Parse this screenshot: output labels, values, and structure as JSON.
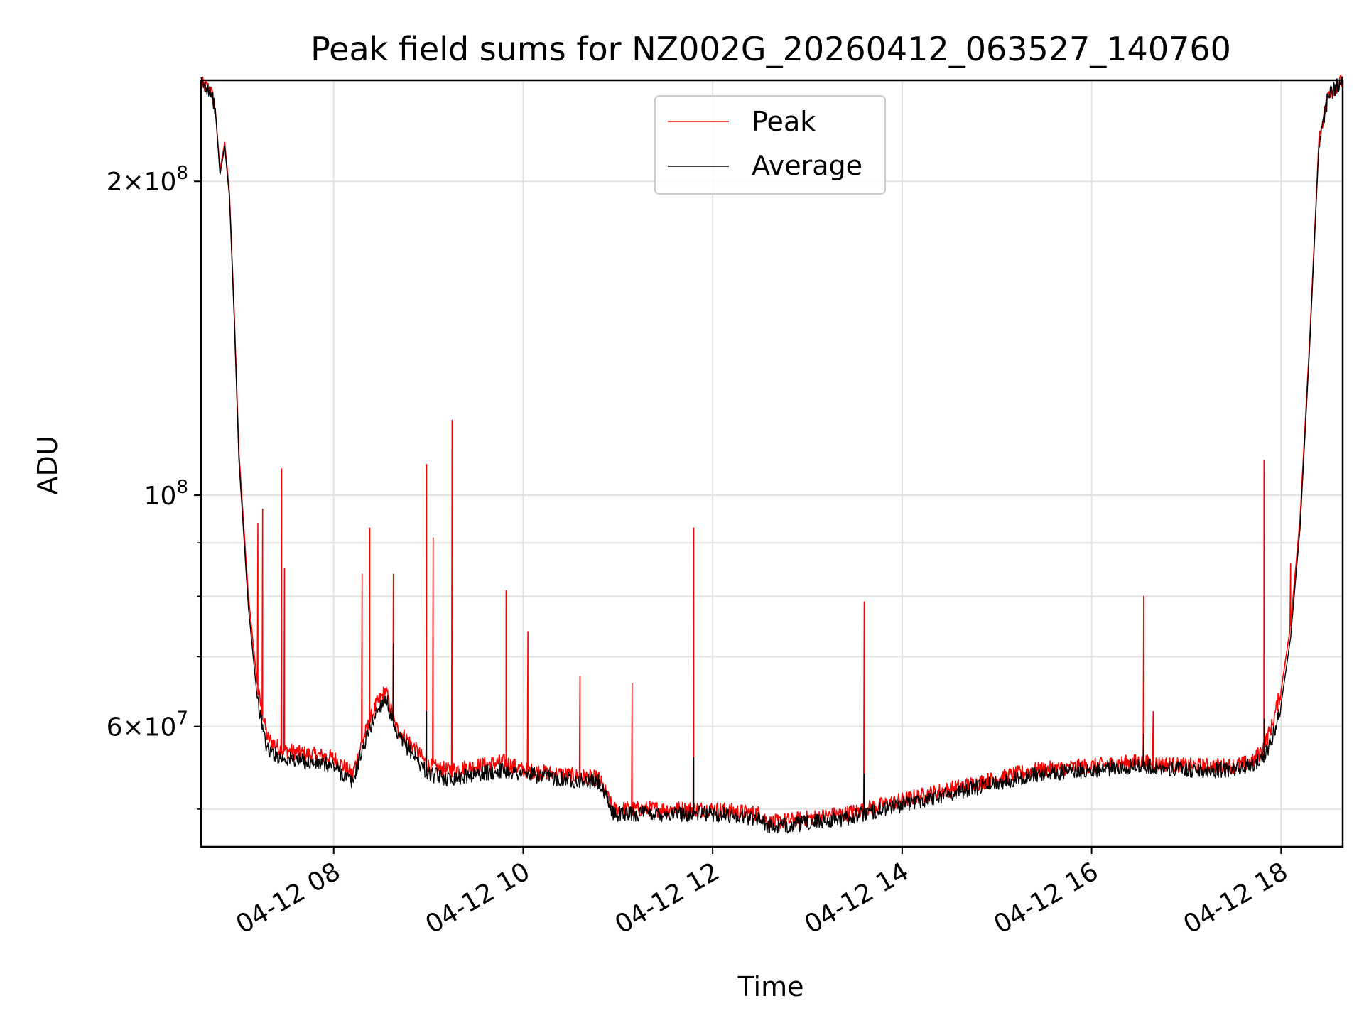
{
  "chart_data": {
    "type": "line",
    "title": "Peak field sums for NZ002G_20260412_063527_140760",
    "xlabel": "Time",
    "ylabel": "ADU",
    "x_unit": "hours since 2026-04-12 00:00",
    "xlim": [
      6.6,
      18.65
    ],
    "ylim": [
      46000000,
      250000000
    ],
    "yscale": "log",
    "grid": true,
    "legend_position": "upper-center",
    "x_ticks": [
      {
        "value": 8,
        "label": "04-12 08"
      },
      {
        "value": 10,
        "label": "04-12 10"
      },
      {
        "value": 12,
        "label": "04-12 12"
      },
      {
        "value": 14,
        "label": "04-12 14"
      },
      {
        "value": 16,
        "label": "04-12 16"
      },
      {
        "value": 18,
        "label": "04-12 18"
      }
    ],
    "y_ticks": [
      {
        "value": 60000000,
        "mantissa": "6",
        "exponent": "7"
      },
      {
        "value": 100000000,
        "mantissa": "",
        "exponent": "8"
      },
      {
        "value": 200000000,
        "mantissa": "2",
        "exponent": "8"
      }
    ],
    "y_minor_ticks": [
      50000000,
      70000000,
      80000000,
      90000000
    ],
    "series": [
      {
        "name": "Peak",
        "color": "#ff0000",
        "x": [
          6.6,
          6.7,
          6.75,
          6.8,
          6.85,
          6.9,
          6.95,
          7.0,
          7.1,
          7.2,
          7.3,
          7.45,
          7.7,
          8.0,
          8.2,
          8.3,
          8.45,
          8.55,
          8.65,
          8.8,
          9.0,
          9.2,
          9.5,
          9.8,
          10.0,
          10.4,
          10.8,
          10.95,
          11.5,
          12.0,
          12.5,
          12.6,
          13.0,
          13.4,
          13.8,
          14.2,
          14.6,
          15.0,
          15.4,
          16.0,
          16.5,
          17.0,
          17.5,
          17.7,
          17.8,
          17.9,
          18.0,
          18.1,
          18.2,
          18.3,
          18.4,
          18.5,
          18.65
        ],
        "y": [
          248000000,
          245000000,
          235000000,
          205000000,
          218000000,
          195000000,
          150000000,
          110000000,
          80000000,
          65000000,
          58500000,
          57000000,
          56500000,
          56000000,
          54000000,
          58000000,
          63000000,
          65000000,
          60000000,
          58000000,
          55000000,
          54500000,
          55000000,
          55500000,
          54500000,
          54000000,
          53500000,
          50000000,
          50000000,
          50000000,
          49500000,
          48500000,
          49000000,
          49500000,
          50500000,
          51500000,
          52500000,
          53500000,
          54500000,
          55000000,
          55500000,
          55000000,
          55000000,
          55500000,
          57000000,
          60000000,
          65000000,
          75000000,
          95000000,
          140000000,
          220000000,
          243000000,
          250000000
        ],
        "spikes": [
          {
            "x": 7.2,
            "y": 94000000
          },
          {
            "x": 7.25,
            "y": 97000000
          },
          {
            "x": 7.45,
            "y": 106000000
          },
          {
            "x": 7.48,
            "y": 85000000
          },
          {
            "x": 8.3,
            "y": 84000000
          },
          {
            "x": 8.38,
            "y": 93000000
          },
          {
            "x": 8.63,
            "y": 84000000
          },
          {
            "x": 8.98,
            "y": 107000000
          },
          {
            "x": 9.05,
            "y": 91000000
          },
          {
            "x": 9.25,
            "y": 118000000
          },
          {
            "x": 9.82,
            "y": 81000000
          },
          {
            "x": 10.05,
            "y": 74000000
          },
          {
            "x": 10.6,
            "y": 67000000
          },
          {
            "x": 11.15,
            "y": 66000000
          },
          {
            "x": 11.8,
            "y": 93000000
          },
          {
            "x": 13.6,
            "y": 79000000
          },
          {
            "x": 16.55,
            "y": 80000000
          },
          {
            "x": 16.65,
            "y": 62000000
          },
          {
            "x": 17.82,
            "y": 108000000
          },
          {
            "x": 18.1,
            "y": 86000000
          }
        ]
      },
      {
        "name": "Average",
        "color": "#000000",
        "x": [
          6.6,
          6.7,
          6.75,
          6.8,
          6.85,
          6.9,
          6.95,
          7.0,
          7.1,
          7.2,
          7.3,
          7.45,
          7.7,
          8.0,
          8.2,
          8.3,
          8.45,
          8.55,
          8.65,
          8.8,
          9.0,
          9.2,
          9.5,
          9.8,
          10.0,
          10.4,
          10.8,
          10.95,
          11.5,
          12.0,
          12.5,
          12.6,
          13.0,
          13.4,
          13.8,
          14.2,
          14.6,
          15.0,
          15.4,
          16.0,
          16.5,
          17.0,
          17.5,
          17.7,
          17.8,
          17.9,
          18.0,
          18.1,
          18.2,
          18.3,
          18.4,
          18.5,
          18.65
        ],
        "y": [
          248000000,
          245000000,
          235000000,
          203000000,
          216000000,
          193000000,
          148000000,
          108000000,
          78000000,
          63000000,
          57000000,
          56000000,
          55500000,
          55000000,
          53000000,
          57000000,
          62000000,
          64000000,
          59000000,
          57000000,
          54000000,
          53500000,
          54000000,
          54500000,
          54000000,
          53500000,
          53000000,
          49500000,
          49500000,
          49500000,
          49000000,
          48000000,
          48500000,
          49000000,
          50000000,
          51000000,
          52000000,
          53000000,
          54000000,
          54500000,
          55000000,
          54500000,
          54500000,
          55000000,
          56000000,
          58000000,
          63000000,
          73000000,
          93000000,
          138000000,
          218000000,
          242000000,
          250000000
        ],
        "spikes": [
          {
            "x": 8.63,
            "y": 72000000
          },
          {
            "x": 8.98,
            "y": 62000000
          },
          {
            "x": 11.8,
            "y": 56000000
          },
          {
            "x": 13.6,
            "y": 54000000
          },
          {
            "x": 16.55,
            "y": 59000000
          },
          {
            "x": 17.82,
            "y": 61000000
          }
        ]
      }
    ]
  }
}
